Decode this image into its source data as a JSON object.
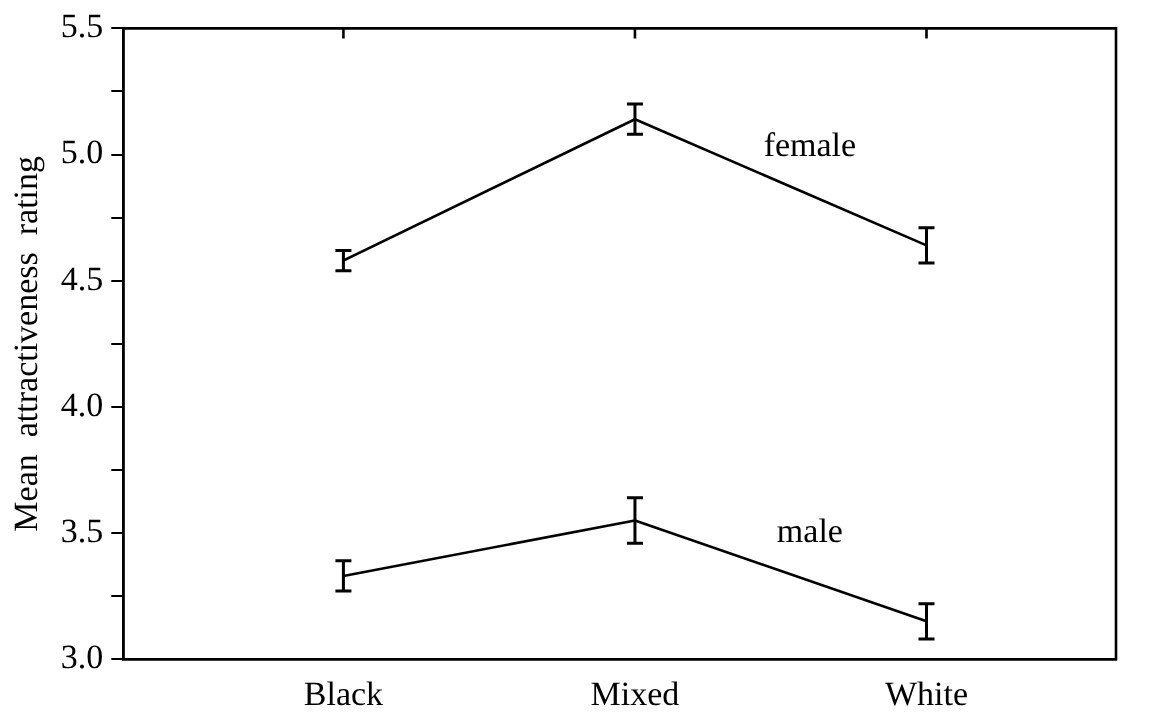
{
  "chart_data": {
    "type": "line",
    "ylabel": "Mean  attractiveness  rating",
    "categories": [
      "Black",
      "Mixed",
      "White"
    ],
    "series": [
      {
        "name": "female",
        "color": "#000000",
        "values": [
          4.58,
          5.14,
          4.64
        ],
        "errors": [
          0.04,
          0.06,
          0.07
        ]
      },
      {
        "name": "male",
        "color": "#000000",
        "values": [
          3.33,
          3.55,
          3.15
        ],
        "errors": [
          0.06,
          0.09,
          0.07
        ]
      }
    ],
    "ylim": [
      3.0,
      5.5
    ],
    "yticks": [
      {
        "value": 3,
        "label": "3.0"
      },
      {
        "value": 3.25,
        "label": null
      },
      {
        "value": 3.5,
        "label": "3.5"
      },
      {
        "value": 3.75,
        "label": null
      },
      {
        "value": 4,
        "label": "4.0"
      },
      {
        "value": 4.25,
        "label": null
      },
      {
        "value": 4.5,
        "label": "4.5"
      },
      {
        "value": 4.75,
        "label": null
      },
      {
        "value": 5,
        "label": "5.0"
      },
      {
        "value": 5.25,
        "label": null
      },
      {
        "value": 5.5,
        "label": "5.5"
      }
    ],
    "grid": false,
    "legend": false,
    "marker": "none",
    "line_style": "solid"
  }
}
